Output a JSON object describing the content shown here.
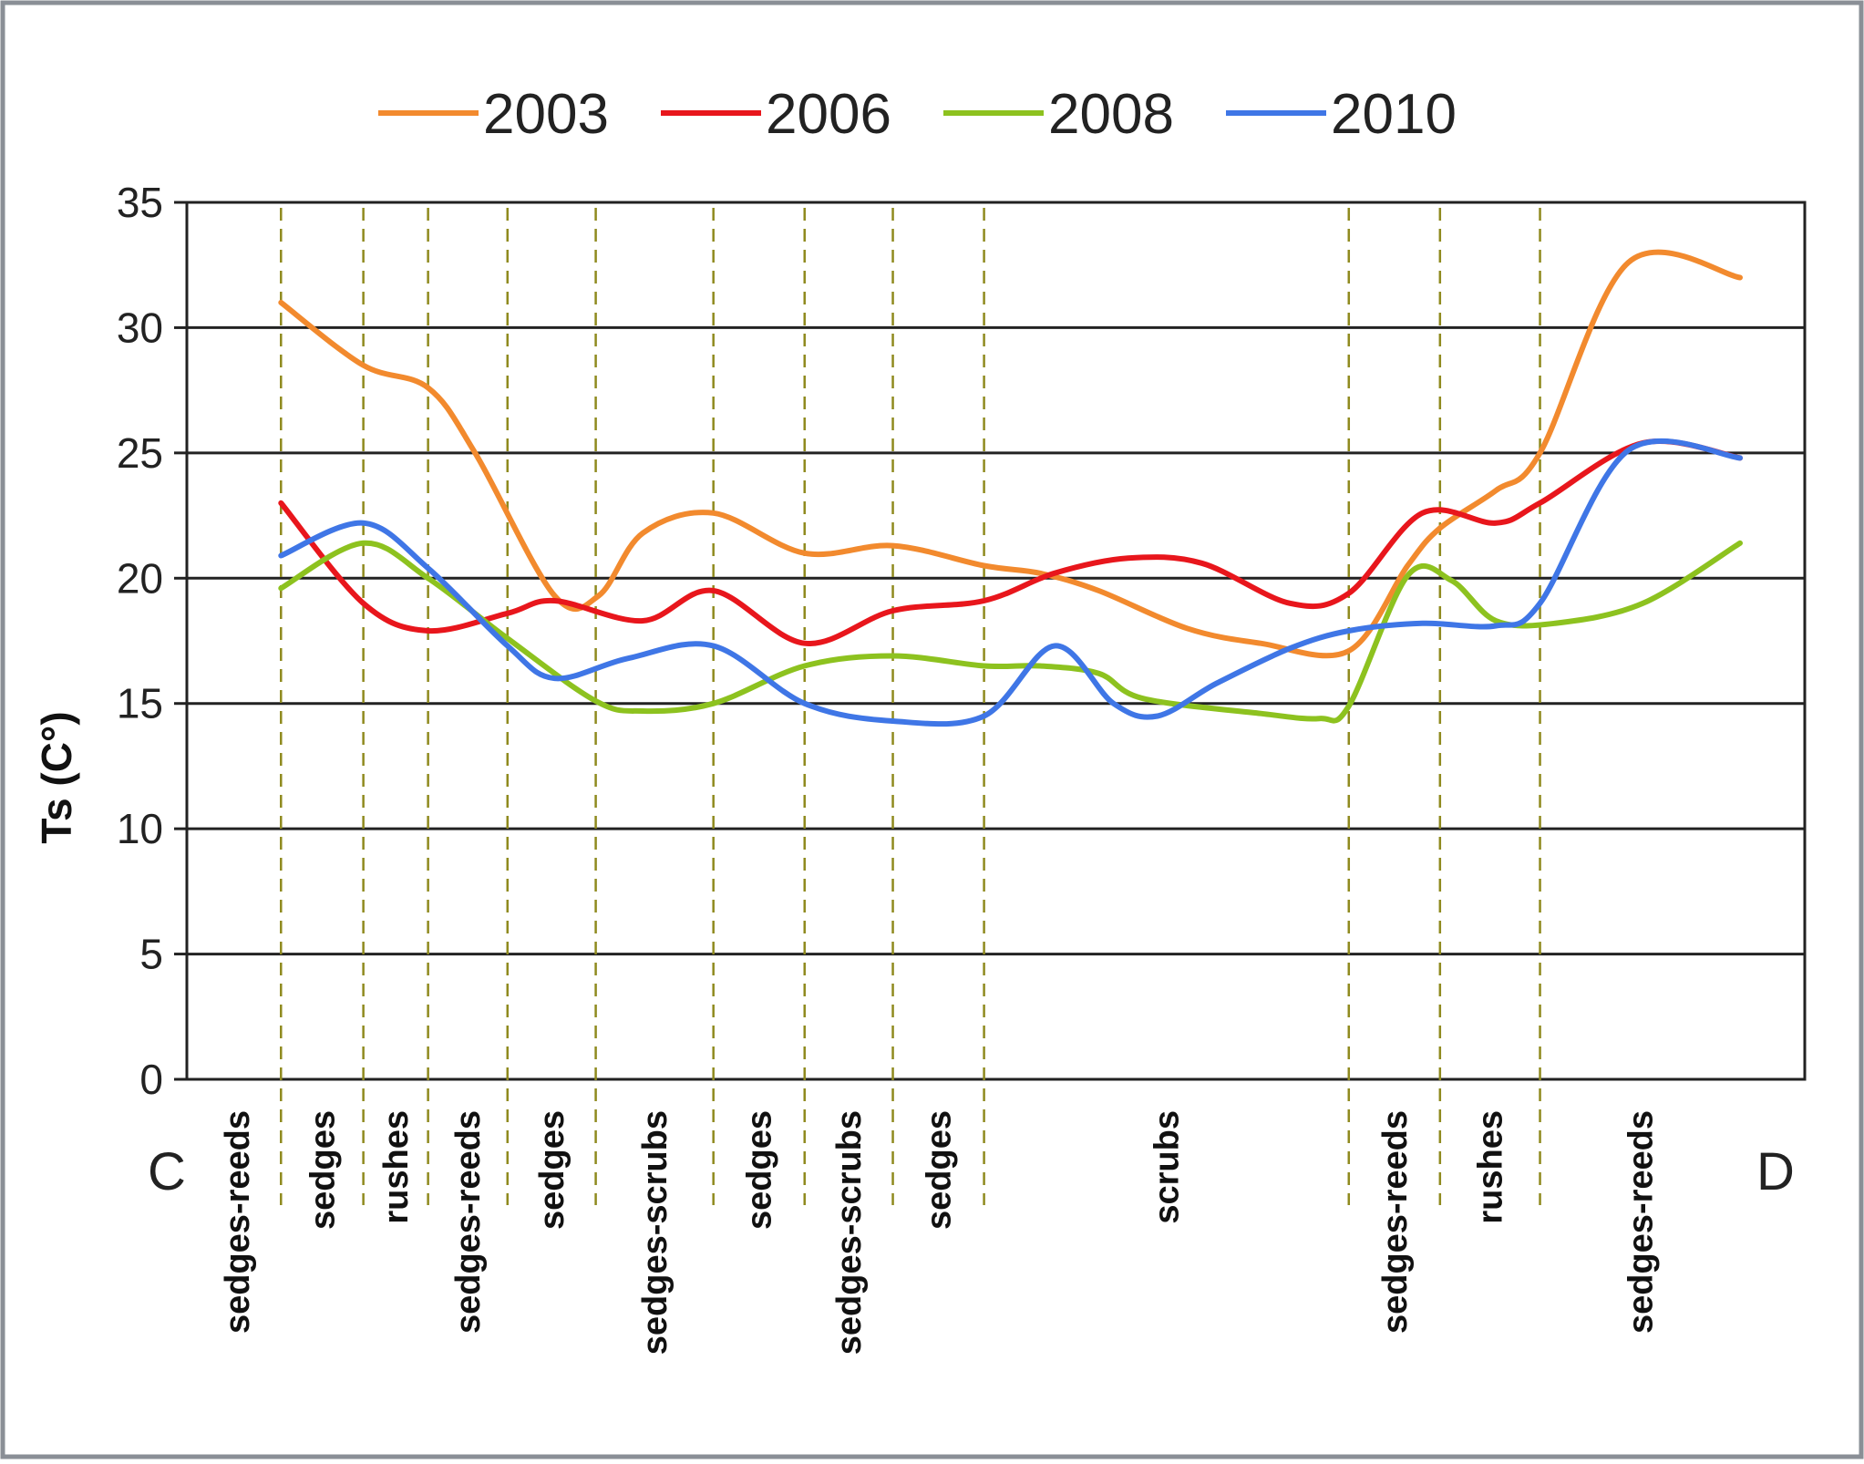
{
  "chart_data": {
    "type": "line",
    "title": "",
    "xlabel": "",
    "ylabel": "Ts (C°)",
    "ylim": [
      0,
      35
    ],
    "yticks": [
      0,
      5,
      10,
      15,
      20,
      25,
      30,
      35
    ],
    "grid": "horizontal",
    "legend_position": "top",
    "x_start_label": "C",
    "x_end_label": "D",
    "zones": [
      "sedges-reeds",
      "sedges",
      "rushes",
      "sedges-reeds",
      "sedges",
      "sedges-scrubs",
      "sedges",
      "sedges-scrubs",
      "sedges",
      "scrubs",
      "sedges-reeds",
      "rushes",
      "sedges-reeds"
    ],
    "zone_boundaries_x": [
      3.2,
      6.0,
      8.2,
      10.9,
      13.9,
      17.9,
      21.0,
      24.0,
      27.1,
      39.5,
      42.6,
      46.0
    ],
    "x_range": [
      0,
      55
    ],
    "series": [
      {
        "name": "2003",
        "color": "#F28A2E",
        "x": [
          3.2,
          6.0,
          8.2,
          9.8,
          12.5,
          14.0,
          15.5,
          17.9,
          21.0,
          24.0,
          27.1,
          29.0,
          31.0,
          34.0,
          36.5,
          39.5,
          41.5,
          42.6,
          44.5,
          46.0,
          49.0,
          52.8
        ],
        "y": [
          31.0,
          28.5,
          27.6,
          25.0,
          19.3,
          19.3,
          21.8,
          22.6,
          21.0,
          21.3,
          20.5,
          20.2,
          19.5,
          18.0,
          17.4,
          17.1,
          20.5,
          22.0,
          23.5,
          25.0,
          32.6,
          32.0
        ]
      },
      {
        "name": "2006",
        "color": "#E8161C",
        "x": [
          3.2,
          6.0,
          8.2,
          10.9,
          12.5,
          15.5,
          17.9,
          21.0,
          24.0,
          27.1,
          29.5,
          32.0,
          34.5,
          37.5,
          39.5,
          42.0,
          44.5,
          46.0,
          49.5,
          52.8
        ],
        "y": [
          23.0,
          19.0,
          17.9,
          18.6,
          19.1,
          18.3,
          19.5,
          17.4,
          18.7,
          19.1,
          20.2,
          20.8,
          20.6,
          19.0,
          19.4,
          22.6,
          22.2,
          23.0,
          25.4,
          24.8
        ]
      },
      {
        "name": "2008",
        "color": "#8DC21F",
        "x": [
          3.2,
          6.0,
          8.2,
          10.9,
          13.9,
          15.5,
          17.9,
          21.0,
          24.0,
          27.1,
          29.0,
          31.0,
          32.5,
          36.5,
          38.5,
          39.5,
          41.5,
          43.0,
          44.5,
          46.5,
          49.5,
          52.8
        ],
        "y": [
          19.6,
          21.4,
          20.0,
          17.6,
          15.1,
          14.7,
          15.0,
          16.5,
          16.9,
          16.5,
          16.5,
          16.2,
          15.2,
          14.6,
          14.4,
          14.9,
          20.1,
          19.9,
          18.3,
          18.2,
          19.0,
          21.4
        ]
      },
      {
        "name": "2010",
        "color": "#3F76E6",
        "x": [
          3.2,
          6.0,
          8.2,
          10.9,
          12.5,
          15.0,
          17.9,
          21.0,
          24.0,
          27.1,
          29.5,
          31.5,
          33.0,
          35.0,
          37.5,
          39.5,
          42.0,
          44.5,
          46.0,
          49.0,
          52.8
        ],
        "y": [
          20.9,
          22.2,
          20.4,
          17.3,
          16.0,
          16.8,
          17.3,
          15.0,
          14.3,
          14.5,
          17.3,
          15.0,
          14.5,
          15.8,
          17.2,
          17.9,
          18.2,
          18.1,
          19.0,
          25.1,
          24.8
        ]
      }
    ]
  }
}
